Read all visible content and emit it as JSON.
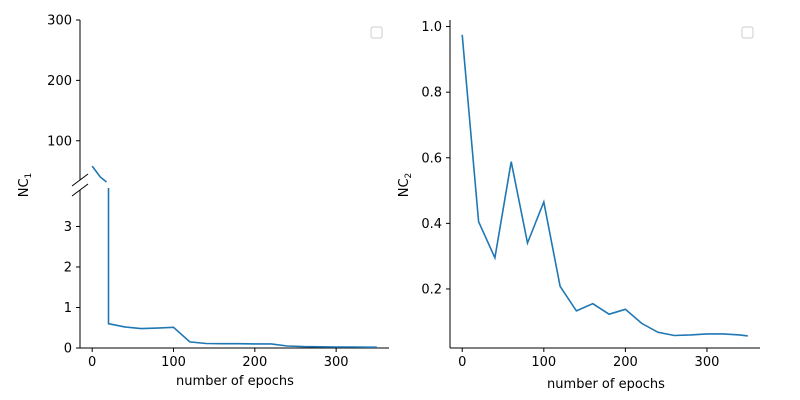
{
  "chart_data": [
    {
      "type": "line",
      "panel": "left",
      "broken_y_axis": true,
      "ylabel_main": "NC",
      "ylabel_sub": "1",
      "xlabel": "number of epochs",
      "xlim": [
        -15,
        365
      ],
      "xticks": [
        0,
        100,
        200,
        300
      ],
      "ylim_upper": [
        35,
        300
      ],
      "yticks_upper": [
        100,
        200,
        300
      ],
      "ylim_lower": [
        0,
        3.9
      ],
      "yticks_lower": [
        0,
        1,
        2,
        3
      ],
      "legend": "top-right (empty)",
      "series": [
        {
          "color": "#1f77b4",
          "x": [
            0,
            10,
            20,
            40,
            60,
            80,
            100,
            120,
            140,
            160,
            180,
            200,
            220,
            240,
            260,
            280,
            300,
            320,
            340,
            350
          ],
          "y": [
            58,
            40,
            0.6,
            0.52,
            0.48,
            0.49,
            0.51,
            0.15,
            0.11,
            0.105,
            0.105,
            0.1,
            0.1,
            0.05,
            0.035,
            0.03,
            0.025,
            0.025,
            0.02,
            0.02
          ]
        }
      ]
    },
    {
      "type": "line",
      "panel": "right",
      "ylabel_main": "NC",
      "ylabel_sub": "2",
      "xlabel": "number of epochs",
      "xlim": [
        -15,
        365
      ],
      "xticks": [
        0,
        100,
        200,
        300
      ],
      "ylim": [
        0.02,
        1.02
      ],
      "yticks": [
        0.2,
        0.4,
        0.6,
        0.8,
        1.0
      ],
      "ytick_labels": [
        "0.2",
        "0.4",
        "0.6",
        "0.8",
        "1.0"
      ],
      "legend": "top-right (empty)",
      "series": [
        {
          "color": "#1f77b4",
          "x": [
            0,
            20,
            40,
            60,
            80,
            100,
            120,
            140,
            160,
            180,
            200,
            220,
            240,
            260,
            280,
            300,
            320,
            340,
            350
          ],
          "y": [
            0.975,
            0.405,
            0.295,
            0.588,
            0.34,
            0.465,
            0.208,
            0.133,
            0.155,
            0.123,
            0.138,
            0.095,
            0.068,
            0.058,
            0.06,
            0.063,
            0.063,
            0.06,
            0.057
          ]
        }
      ]
    }
  ]
}
